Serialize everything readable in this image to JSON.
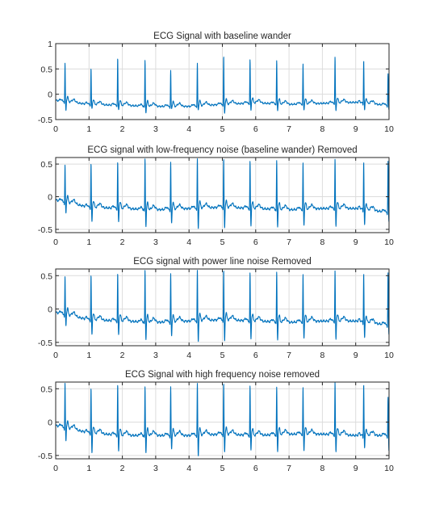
{
  "figure": {
    "background": "#ffffff",
    "axis_color": "#262626",
    "grid_color": "#dcdcdc",
    "line_color": "#0072BD"
  },
  "chart_data": [
    {
      "type": "line",
      "title": "ECG Signal with baseline wander",
      "xlabel": "",
      "ylabel": "",
      "xlim": [
        0,
        10
      ],
      "ylim": [
        -0.5,
        1
      ],
      "xticks": [
        0,
        1,
        2,
        3,
        4,
        5,
        6,
        7,
        8,
        9,
        10
      ],
      "yticks": [
        -0.5,
        0,
        0.5,
        1
      ],
      "ytick_labels": [
        "-0.5",
        "0",
        "0.5",
        "1"
      ],
      "grid": true,
      "series": [
        {
          "color": "#0072BD",
          "beat_times": [
            0.28,
            1.06,
            1.86,
            2.68,
            3.45,
            4.25,
            5.04,
            5.83,
            6.63,
            7.42,
            8.38,
            9.24,
            9.97
          ],
          "r_peaks": [
            0.58,
            0.5,
            0.7,
            0.64,
            0.44,
            0.58,
            0.72,
            0.66,
            0.64,
            0.58,
            0.72,
            0.65,
            0.38
          ],
          "s_troughs": [
            -0.32,
            -0.3,
            -0.32,
            -0.36,
            -0.3,
            -0.32,
            -0.38,
            -0.32,
            -0.32,
            -0.32,
            -0.34,
            -0.32,
            -0.32
          ],
          "baseline": {
            "x": [
              0,
              1,
              2,
              3,
              4,
              5,
              6,
              7,
              8,
              9,
              10
            ],
            "y": [
              -0.12,
              -0.2,
              -0.22,
              -0.24,
              -0.24,
              -0.2,
              -0.17,
              -0.2,
              -0.18,
              -0.16,
              -0.22
            ]
          }
        }
      ]
    },
    {
      "type": "line",
      "title": "ECG signal with low-frequency noise (baseline wander) Removed",
      "xlabel": "",
      "ylabel": "",
      "xlim": [
        0,
        10
      ],
      "ylim": [
        -0.55,
        0.6
      ],
      "xticks": [
        0,
        1,
        2,
        3,
        4,
        5,
        6,
        7,
        8,
        9,
        10
      ],
      "yticks": [
        -0.5,
        0,
        0.5
      ],
      "ytick_labels": [
        "-0.5",
        "0",
        "0.5"
      ],
      "grid": true,
      "series": [
        {
          "color": "#0072BD",
          "beat_times": [
            0.28,
            1.06,
            1.86,
            2.68,
            3.45,
            4.25,
            5.04,
            5.83,
            6.63,
            7.42,
            8.38,
            9.24,
            9.97
          ],
          "r_peaks": [
            0.45,
            0.5,
            0.52,
            0.55,
            0.5,
            0.55,
            0.55,
            0.52,
            0.53,
            0.5,
            0.56,
            0.52,
            0.52
          ],
          "s_troughs": [
            -0.25,
            -0.4,
            -0.4,
            -0.45,
            -0.42,
            -0.5,
            -0.48,
            -0.45,
            -0.46,
            -0.45,
            -0.47,
            -0.44,
            -0.4
          ],
          "baseline": {
            "x": [
              0,
              1,
              2,
              3,
              4,
              5,
              6,
              7,
              8,
              9,
              10
            ],
            "y": [
              -0.05,
              -0.16,
              -0.18,
              -0.2,
              -0.18,
              -0.16,
              -0.18,
              -0.2,
              -0.18,
              -0.18,
              -0.24
            ]
          }
        }
      ]
    },
    {
      "type": "line",
      "title": "ECG signal with power line noise Removed",
      "xlabel": "",
      "ylabel": "",
      "xlim": [
        0,
        10
      ],
      "ylim": [
        -0.55,
        0.6
      ],
      "xticks": [
        0,
        1,
        2,
        3,
        4,
        5,
        6,
        7,
        8,
        9,
        10
      ],
      "yticks": [
        -0.5,
        0,
        0.5
      ],
      "ytick_labels": [
        "-0.5",
        "0",
        "0.5"
      ],
      "grid": true,
      "series": [
        {
          "color": "#0072BD",
          "beat_times": [
            0.28,
            1.06,
            1.86,
            2.68,
            3.45,
            4.25,
            5.04,
            5.83,
            6.63,
            7.42,
            8.38,
            9.24,
            9.97
          ],
          "r_peaks": [
            0.45,
            0.5,
            0.52,
            0.55,
            0.5,
            0.55,
            0.55,
            0.52,
            0.53,
            0.5,
            0.56,
            0.52,
            0.52
          ],
          "s_troughs": [
            -0.25,
            -0.4,
            -0.4,
            -0.45,
            -0.42,
            -0.5,
            -0.48,
            -0.45,
            -0.46,
            -0.45,
            -0.47,
            -0.44,
            -0.4
          ],
          "baseline": {
            "x": [
              0,
              1,
              2,
              3,
              4,
              5,
              6,
              7,
              8,
              9,
              10
            ],
            "y": [
              -0.05,
              -0.16,
              -0.18,
              -0.2,
              -0.18,
              -0.16,
              -0.18,
              -0.2,
              -0.18,
              -0.18,
              -0.24
            ]
          }
        }
      ]
    },
    {
      "type": "line",
      "title": "ECG Signal with high frequency noise removed",
      "xlabel": "",
      "ylabel": "",
      "xlim": [
        0,
        10
      ],
      "ylim": [
        -0.55,
        0.6
      ],
      "xticks": [
        0,
        1,
        2,
        3,
        4,
        5,
        6,
        7,
        8,
        9,
        10
      ],
      "yticks": [
        -0.5,
        0,
        0.5
      ],
      "ytick_labels": [
        "-0.5",
        "0",
        "0.5"
      ],
      "grid": true,
      "series": [
        {
          "color": "#0072BD",
          "beat_times": [
            0.28,
            1.06,
            1.86,
            2.68,
            3.45,
            4.25,
            5.04,
            5.83,
            6.63,
            7.42,
            8.38,
            9.24,
            9.97
          ],
          "r_peaks": [
            0.55,
            0.5,
            0.55,
            0.5,
            0.5,
            0.55,
            0.55,
            0.52,
            0.5,
            0.5,
            0.58,
            0.55,
            0.35
          ],
          "s_troughs": [
            -0.28,
            -0.48,
            -0.45,
            -0.45,
            -0.42,
            -0.52,
            -0.45,
            -0.42,
            -0.44,
            -0.44,
            -0.46,
            -0.4,
            -0.45
          ],
          "baseline": {
            "x": [
              0,
              1,
              2,
              3,
              4,
              5,
              6,
              7,
              8,
              9,
              10
            ],
            "y": [
              -0.05,
              -0.16,
              -0.2,
              -0.2,
              -0.2,
              -0.18,
              -0.2,
              -0.18,
              -0.18,
              -0.2,
              -0.2
            ]
          }
        }
      ]
    }
  ]
}
